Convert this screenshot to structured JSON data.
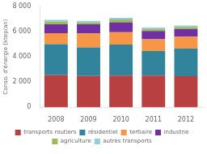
{
  "chart_data": {
    "type": "bar",
    "stacked": true,
    "ylabel": "Conso. d'énergie (ktep/an)",
    "categories": [
      "2008",
      "2009",
      "2010",
      "2011",
      "2012"
    ],
    "series": [
      {
        "name": "transports routiers",
        "color": "#b94040",
        "values": [
          2550,
          2480,
          2520,
          2520,
          2470
        ]
      },
      {
        "name": "résidentiel",
        "color": "#31849b",
        "values": [
          2450,
          2270,
          2450,
          1930,
          2190
        ]
      },
      {
        "name": "tertiaire",
        "color": "#f79646",
        "values": [
          870,
          1100,
          980,
          930,
          930
        ]
      },
      {
        "name": "industrie",
        "color": "#7030a0",
        "values": [
          700,
          720,
          780,
          660,
          620
        ]
      },
      {
        "name": "agriculture",
        "color": "#9bbb59",
        "values": [
          230,
          150,
          230,
          160,
          150
        ]
      },
      {
        "name": "autres transports",
        "color": "#92cddc",
        "values": [
          130,
          120,
          130,
          120,
          120
        ]
      }
    ],
    "ylim": [
      0,
      8000
    ],
    "yticks": [
      0,
      {
        "value": 2000,
        "label": "2 000"
      },
      {
        "value": 4000,
        "label": "4 000"
      },
      {
        "value": 6000,
        "label": "6 000"
      },
      {
        "value": 8000,
        "label": "8 000"
      }
    ],
    "grid": false,
    "legend": "bottom"
  }
}
